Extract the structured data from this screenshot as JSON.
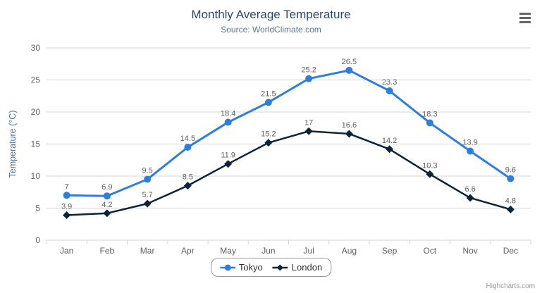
{
  "credits": "Highcharts.com",
  "menu": {
    "icon": "hamburger-menu"
  },
  "colors": {
    "title": "#274b6d",
    "subtitle": "#55759e",
    "axis_title": "#4572a7",
    "tick_label": "#606060",
    "data_label": "#606060",
    "grid": "#d6d6d6",
    "axis_line": "#ccd6eb",
    "legend_text": "#333333",
    "credits_text": "#999999",
    "tokyo": "#2f7ed8",
    "london": "#0d233a"
  },
  "chart_data": {
    "type": "line",
    "title": "Monthly Average Temperature",
    "subtitle": "Source: WorldClimate.com",
    "xlabel": "",
    "ylabel": "Temperature (°C)",
    "categories": [
      "Jan",
      "Feb",
      "Mar",
      "Apr",
      "May",
      "Jun",
      "Jul",
      "Aug",
      "Sep",
      "Oct",
      "Nov",
      "Dec"
    ],
    "series": [
      {
        "name": "Tokyo",
        "marker": "circle",
        "color": "#2f7ed8",
        "values": [
          7,
          6.9,
          9.5,
          14.5,
          18.4,
          21.5,
          25.2,
          26.5,
          23.3,
          18.3,
          13.9,
          9.6
        ]
      },
      {
        "name": "London",
        "marker": "diamond",
        "color": "#0d233a",
        "values": [
          3.9,
          4.2,
          5.7,
          8.5,
          11.9,
          15.2,
          17,
          16.6,
          14.2,
          10.3,
          6.6,
          4.8
        ]
      }
    ],
    "yticks": [
      0,
      5,
      10,
      15,
      20,
      25,
      30
    ],
    "ylim": [
      0,
      30
    ],
    "grid": true,
    "data_labels": true,
    "legend_position": "bottom-center"
  }
}
